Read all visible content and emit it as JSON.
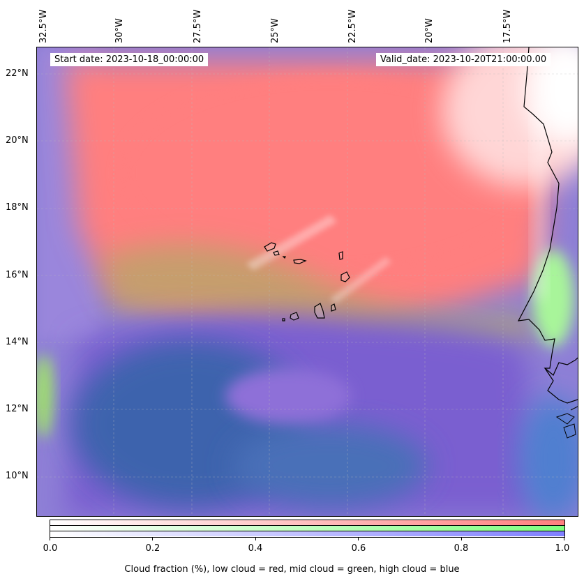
{
  "map": {
    "start_date": "Start date: 2023-10-18_00:00:00",
    "valid_date": "Valid_date: 2023-10-20T21:00:00.00",
    "lon_labels": [
      "32.5°W",
      "30°W",
      "27.5°W",
      "25°W",
      "22.5°W",
      "20°W",
      "17.5°W"
    ],
    "lat_labels": [
      "22°N",
      "20°N",
      "18°N",
      "16°N",
      "14°N",
      "12°N",
      "10°N"
    ],
    "colors": {
      "low_cloud": "#ff7f7f",
      "mid_cloud": "#7fff7f",
      "high_cloud": "#7f7fff",
      "coastline": "#000000"
    }
  },
  "colorbar": {
    "label": "Cloud fraction (%), low cloud = red, mid cloud = green, high cloud = blue",
    "ticks": [
      "0.0",
      "0.2",
      "0.4",
      "0.6",
      "0.8",
      "1.0"
    ]
  }
}
